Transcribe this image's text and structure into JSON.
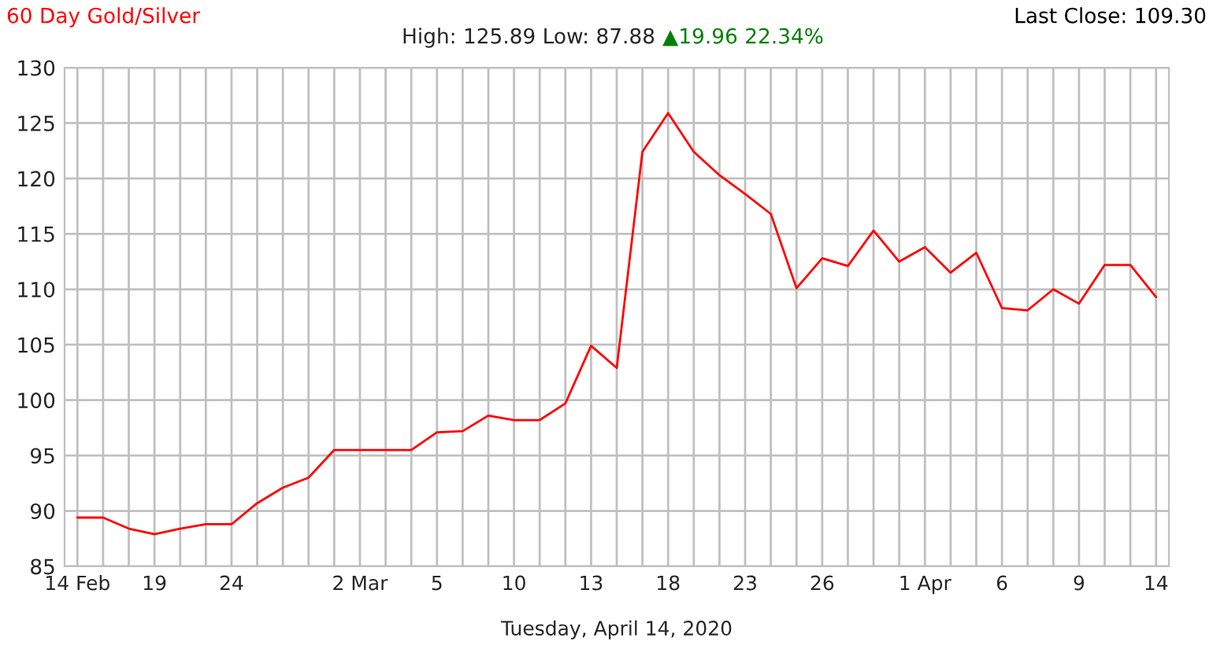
{
  "chart_data": {
    "type": "line",
    "title": "60 Day Gold/Silver",
    "subtitle": "High: 125.89 Low: 87.88",
    "xlabel": "Tuesday, April 14, 2020",
    "annotations": [
      "Last Close: 109.30",
      "▲19.96 22.34%"
    ],
    "categories": [
      "14 Feb",
      null,
      null,
      "19",
      null,
      null,
      "24",
      null,
      null,
      null,
      null,
      "2 Mar",
      null,
      null,
      "5",
      null,
      null,
      "10",
      null,
      null,
      "13",
      null,
      null,
      "18",
      null,
      null,
      "23",
      null,
      null,
      "26",
      null,
      null,
      null,
      "1 Apr",
      null,
      null,
      "6",
      null,
      null,
      "9",
      null,
      null,
      "14"
    ],
    "series": [
      {
        "color": "#ff0000",
        "values": [
          89.4,
          89.4,
          88.4,
          87.9,
          88.4,
          88.8,
          88.8,
          90.7,
          92.1,
          93.0,
          95.5,
          95.5,
          95.5,
          95.5,
          97.1,
          97.2,
          98.6,
          98.2,
          98.2,
          99.7,
          104.9,
          102.9,
          122.4,
          125.9,
          122.4,
          120.3,
          118.6,
          116.8,
          110.1,
          112.8,
          112.1,
          115.3,
          112.5,
          113.8,
          111.5,
          113.3,
          108.3,
          108.1,
          110.0,
          108.7,
          112.2,
          112.2,
          109.3
        ]
      }
    ],
    "ylim": [
      85,
      130
    ],
    "yticks": [
      85,
      90,
      95,
      100,
      105,
      110,
      115,
      120,
      125,
      130
    ],
    "grid": true,
    "marker": "none",
    "line_style": "solid"
  }
}
